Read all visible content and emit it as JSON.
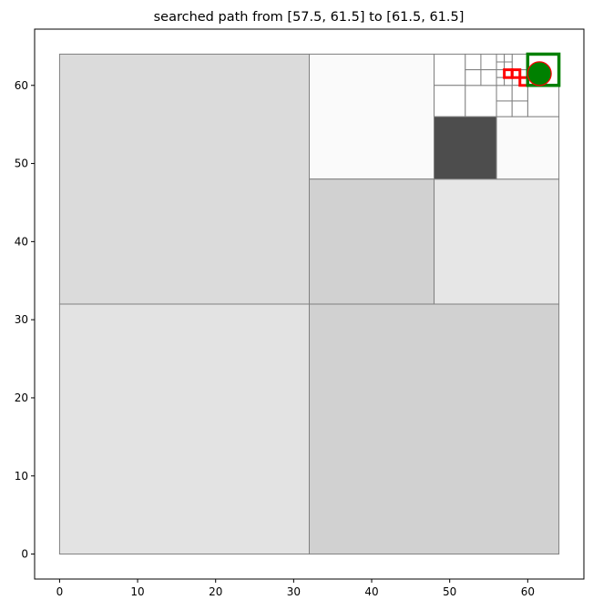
{
  "chart_data": {
    "type": "quadtree-path",
    "title": "searched path from [57.5, 61.5] to [61.5, 61.5]",
    "xlabel": "",
    "ylabel": "",
    "xlim": [
      -3.2,
      67.2
    ],
    "ylim": [
      -3.2,
      67.2
    ],
    "xticks": [
      0,
      10,
      20,
      30,
      40,
      50,
      60
    ],
    "yticks": [
      0,
      10,
      20,
      30,
      40,
      50,
      60
    ],
    "grid": false,
    "cells": [
      {
        "x": 0,
        "y": 32,
        "size": 32,
        "gray": 0.86
      },
      {
        "x": 0,
        "y": 0,
        "size": 32,
        "gray": 0.89
      },
      {
        "x": 32,
        "y": 0,
        "size": 32,
        "gray": 0.82
      },
      {
        "x": 32,
        "y": 48,
        "size": 16,
        "gray": 0.98
      },
      {
        "x": 32,
        "y": 32,
        "size": 16,
        "gray": 0.82
      },
      {
        "x": 48,
        "y": 32,
        "size": 16,
        "gray": 0.9
      },
      {
        "x": 48,
        "y": 48,
        "size": 8,
        "gray": 0.3
      },
      {
        "x": 56,
        "y": 48,
        "size": 8,
        "gray": 0.98
      },
      {
        "x": 48,
        "y": 60,
        "size": 4,
        "gray": 1.0
      },
      {
        "x": 48,
        "y": 56,
        "size": 4,
        "gray": 1.0
      },
      {
        "x": 52,
        "y": 56,
        "size": 4,
        "gray": 1.0
      },
      {
        "x": 60,
        "y": 56,
        "size": 4,
        "gray": 1.0
      },
      {
        "x": 60,
        "y": 60,
        "size": 4,
        "gray": 1.0
      },
      {
        "x": 52,
        "y": 62,
        "size": 2,
        "gray": 1.0
      },
      {
        "x": 54,
        "y": 62,
        "size": 2,
        "gray": 1.0
      },
      {
        "x": 52,
        "y": 60,
        "size": 2,
        "gray": 1.0
      },
      {
        "x": 54,
        "y": 60,
        "size": 2,
        "gray": 1.0
      },
      {
        "x": 58,
        "y": 62,
        "size": 2,
        "gray": 1.0
      },
      {
        "x": 58,
        "y": 60,
        "size": 2,
        "gray": 1.0
      },
      {
        "x": 56,
        "y": 58,
        "size": 2,
        "gray": 1.0
      },
      {
        "x": 58,
        "y": 58,
        "size": 2,
        "gray": 1.0
      },
      {
        "x": 56,
        "y": 56,
        "size": 2,
        "gray": 1.0
      },
      {
        "x": 58,
        "y": 56,
        "size": 2,
        "gray": 1.0
      },
      {
        "x": 56,
        "y": 63,
        "size": 1,
        "gray": 1.0
      },
      {
        "x": 57,
        "y": 63,
        "size": 1,
        "gray": 1.0
      },
      {
        "x": 56,
        "y": 62,
        "size": 1,
        "gray": 1.0
      },
      {
        "x": 57,
        "y": 62,
        "size": 1,
        "gray": 1.0
      },
      {
        "x": 56,
        "y": 61,
        "size": 1,
        "gray": 1.0
      },
      {
        "x": 57,
        "y": 61,
        "size": 1,
        "gray": 1.0
      },
      {
        "x": 56,
        "y": 60,
        "size": 1,
        "gray": 1.0
      },
      {
        "x": 57,
        "y": 60,
        "size": 1,
        "gray": 1.0
      }
    ],
    "path_cells": [
      {
        "x": 57,
        "y": 61,
        "size": 1
      },
      {
        "x": 58,
        "y": 61,
        "size": 1
      },
      {
        "x": 59,
        "y": 60,
        "size": 1
      }
    ],
    "goal_cell": {
      "x": 60,
      "y": 60,
      "size": 4
    },
    "goal_point": {
      "x": 61.5,
      "y": 61.5
    },
    "colors": {
      "cell_edge": "#808080",
      "path": "#ff0000",
      "goal_box": "#008000",
      "goal_marker_fill": "#008000",
      "goal_marker_edge": "#ff0000"
    }
  }
}
